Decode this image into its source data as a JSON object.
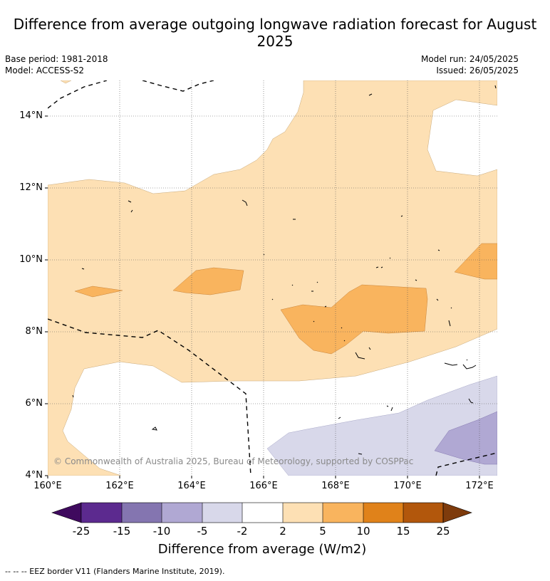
{
  "title": "Difference from average outgoing longwave radiation forecast for August 2025",
  "base_period": "Base period: 1981-2018",
  "model": "Model: ACCESS-S2",
  "model_run": "Model run: 24/05/2025",
  "issued": "Issued: 26/05/2025",
  "copyright": "© Commonwealth of Australia 2025, Bureau of Meteorology, supported by COSPPac",
  "footer": "--  --  -- EEZ border V11 (Flanders Marine Institute, 2019).",
  "map": {
    "lat_labels": [
      "14°N",
      "12°N",
      "10°N",
      "8°N",
      "6°N",
      "4°N"
    ],
    "lon_labels": [
      "160°E",
      "162°E",
      "164°E",
      "166°E",
      "168°E",
      "170°E",
      "172°E"
    ]
  },
  "colorbar": {
    "title": "Difference from average (W/m2)",
    "tick_labels": [
      "-25",
      "-15",
      "-10",
      "-5",
      "-2",
      "2",
      "5",
      "10",
      "15",
      "25"
    ],
    "colors": {
      "below": "#3f0a5e",
      "m25_m15": "#5c2a8f",
      "m15_m10": "#8475b0",
      "m10_m5": "#b0a8d3",
      "m5_m2": "#d8d8ea",
      "m2_2": "#ffffff",
      "p2_p5": "#fde0b4",
      "p5_p10": "#f9b45e",
      "p10_p15": "#e0821a",
      "p15_p25": "#b2570c",
      "above": "#7e3b0c"
    }
  }
}
